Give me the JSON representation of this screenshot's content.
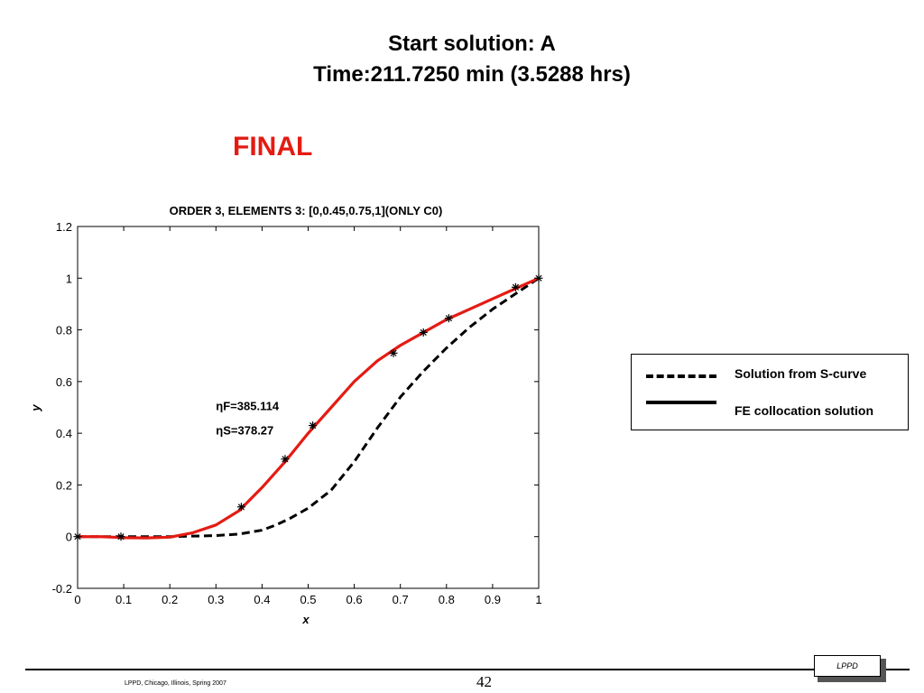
{
  "slide": {
    "title_line1": "Start solution: A",
    "title_line2": "Time:211.7250  min (3.5288 hrs)",
    "final_label": "FINAL",
    "final_color": "#e41b13",
    "footer_left": "LPPD, Chicago, Illinois, Spring 2007",
    "page_number": "42",
    "logo_text": "LPPD"
  },
  "legend": {
    "items": [
      {
        "label": "Solution from S-curve",
        "style": "dashed"
      },
      {
        "label": "FE collocation solution",
        "style": "solid"
      }
    ]
  },
  "chart_data": {
    "type": "line",
    "title": "ORDER 3, ELEMENTS 3: [0,0.45,0.75,1](ONLY C0)",
    "xlabel": "x",
    "ylabel": "y",
    "xlim": [
      0,
      1
    ],
    "ylim": [
      -0.2,
      1.2
    ],
    "xticks": [
      0,
      0.1,
      0.2,
      0.3,
      0.4,
      0.5,
      0.6,
      0.7,
      0.8,
      0.9,
      1
    ],
    "yticks": [
      -0.2,
      0,
      0.2,
      0.4,
      0.6,
      0.8,
      1,
      1.2
    ],
    "grid": false,
    "annotations": [
      {
        "text": "ηF=385.114",
        "x": 0.3,
        "y": 0.49
      },
      {
        "text": "ηS=378.27",
        "x": 0.3,
        "y": 0.395
      }
    ],
    "series": [
      {
        "name": "",
        "style": "dashed",
        "color": "#000000",
        "x": [
          0,
          0.1,
          0.2,
          0.3,
          0.35,
          0.4,
          0.43,
          0.46,
          0.5,
          0.55,
          0.6,
          0.65,
          0.7,
          0.75,
          0.8,
          0.85,
          0.9,
          0.95,
          1
        ],
        "y": [
          0,
          0,
          0,
          0.004,
          0.01,
          0.025,
          0.045,
          0.07,
          0.11,
          0.18,
          0.29,
          0.42,
          0.54,
          0.64,
          0.73,
          0.81,
          0.88,
          0.94,
          1
        ]
      },
      {
        "name": "",
        "style": "solid",
        "color": "#e41b13",
        "x": [
          0,
          0.05,
          0.1,
          0.15,
          0.2,
          0.25,
          0.3,
          0.35,
          0.4,
          0.45,
          0.5,
          0.55,
          0.6,
          0.65,
          0.7,
          0.75,
          0.8,
          0.85,
          0.9,
          0.95,
          1
        ],
        "y": [
          0,
          0,
          -0.004,
          -0.005,
          -0.002,
          0.015,
          0.045,
          0.1,
          0.19,
          0.29,
          0.4,
          0.5,
          0.6,
          0.68,
          0.74,
          0.79,
          0.84,
          0.88,
          0.92,
          0.96,
          1
        ]
      },
      {
        "name": "",
        "style": "markers",
        "marker": "*",
        "color": "#000000",
        "x": [
          0,
          0.094,
          0.355,
          0.45,
          0.51,
          0.685,
          0.75,
          0.805,
          0.95,
          1
        ],
        "y": [
          0,
          0,
          0.115,
          0.3,
          0.43,
          0.71,
          0.79,
          0.845,
          0.965,
          1
        ]
      }
    ]
  }
}
